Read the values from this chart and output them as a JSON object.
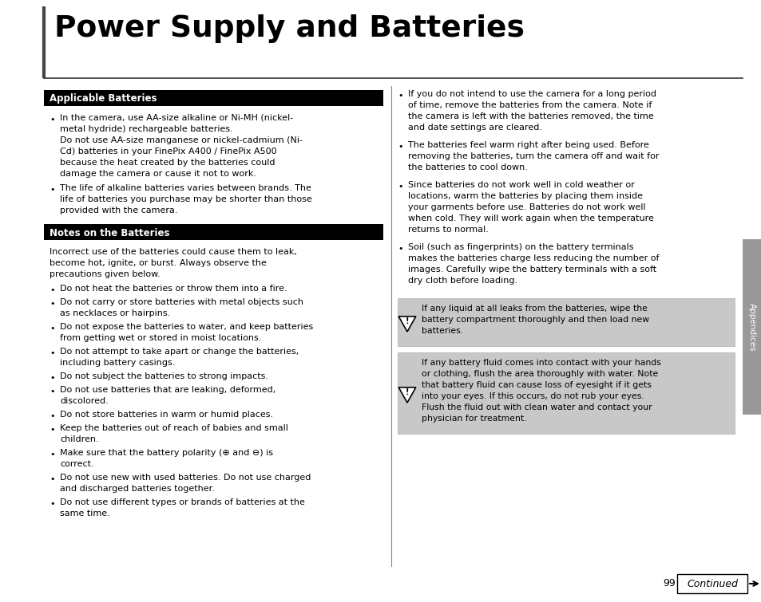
{
  "title": "Power Supply and Batteries",
  "bg_color": "#ffffff",
  "header_bg": "#000000",
  "header_text_color": "#ffffff",
  "section1_header": "Applicable Batteries",
  "section2_header": "Notes on the Batteries",
  "sidebar_color": "#999999",
  "warning_bg": "#C8C8C8",
  "page_number": "99",
  "section1_bullets": [
    [
      "In the camera, use AA-size alkaline or Ni-MH (nickel-",
      "metal hydride) rechargeable batteries.",
      "Do not use AA-size manganese or nickel-cadmium (Ni-",
      "Cd) batteries in your FinePix A400 / FinePix A500",
      "because the heat created by the batteries could",
      "damage the camera or cause it not to work."
    ],
    [
      "The life of alkaline batteries varies between brands. The",
      "life of batteries you purchase may be shorter than those",
      "provided with the camera."
    ]
  ],
  "section2_intro": [
    "Incorrect use of the batteries could cause them to leak,",
    "become hot, ignite, or burst. Always observe the",
    "precautions given below."
  ],
  "section2_bullets": [
    [
      "Do not heat the batteries or throw them into a fire."
    ],
    [
      "Do not carry or store batteries with metal objects such",
      "as necklaces or hairpins."
    ],
    [
      "Do not expose the batteries to water, and keep batteries",
      "from getting wet or stored in moist locations."
    ],
    [
      "Do not attempt to take apart or change the batteries,",
      "including battery casings."
    ],
    [
      "Do not subject the batteries to strong impacts."
    ],
    [
      "Do not use batteries that are leaking, deformed,",
      "discolored."
    ],
    [
      "Do not store batteries in warm or humid places."
    ],
    [
      "Keep the batteries out of reach of babies and small",
      "children."
    ],
    [
      "Make sure that the battery polarity (⊕ and ⊖) is",
      "correct."
    ],
    [
      "Do not use new with used batteries. Do not use charged",
      "and discharged batteries together."
    ],
    [
      "Do not use different types or brands of batteries at the",
      "same time."
    ]
  ],
  "right_bullets": [
    [
      "If you do not intend to use the camera for a long period",
      "of time, remove the batteries from the camera. Note if",
      "the camera is left with the batteries removed, the time",
      "and date settings are cleared."
    ],
    [
      "The batteries feel warm right after being used. Before",
      "removing the batteries, turn the camera off and wait for",
      "the batteries to cool down."
    ],
    [
      "Since batteries do not work well in cold weather or",
      "locations, warm the batteries by placing them inside",
      "your garments before use. Batteries do not work well",
      "when cold. They will work again when the temperature",
      "returns to normal."
    ],
    [
      "Soil (such as fingerprints) on the battery terminals",
      "makes the batteries charge less reducing the number of",
      "images. Carefully wipe the battery terminals with a soft",
      "dry cloth before loading."
    ]
  ],
  "warning1": [
    "If any liquid at all leaks from the batteries, wipe the",
    "battery compartment thoroughly and then load new",
    "batteries."
  ],
  "warning2": [
    "If any battery fluid comes into contact with your hands",
    "or clothing, flush the area thoroughly with water. Note",
    "that battery fluid can cause loss of eyesight if it gets",
    "into your eyes. If this occurs, do not rub your eyes.",
    "Flush the fluid out with clean water and contact your",
    "physician for treatment."
  ],
  "appendices_label": "Appendices",
  "continued_text": "Continued"
}
